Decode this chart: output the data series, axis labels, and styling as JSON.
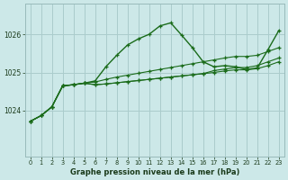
{
  "xlabel": "Graphe pression niveau de la mer (hPa)",
  "bg_color": "#cce8e8",
  "grid_color": "#aacccc",
  "line_color": "#1a6b1a",
  "series_main": [
    1023.72,
    1023.87,
    1024.1,
    1024.65,
    1024.68,
    1024.72,
    1024.78,
    1025.15,
    1025.45,
    1025.72,
    1025.88,
    1026.0,
    1026.22,
    1026.3,
    1025.98,
    1025.65,
    1025.28,
    1025.15,
    1025.18,
    1025.15,
    1025.08,
    1025.12,
    1025.6,
    1026.1
  ],
  "series_line1": [
    1023.72,
    1023.87,
    1024.1,
    1024.65,
    1024.68,
    1024.72,
    1024.75,
    1024.82,
    1024.88,
    1024.93,
    1024.98,
    1025.03,
    1025.08,
    1025.13,
    1025.18,
    1025.23,
    1025.28,
    1025.33,
    1025.38,
    1025.42,
    1025.42,
    1025.45,
    1025.55,
    1025.65
  ],
  "series_line2": [
    1023.72,
    1023.87,
    1024.1,
    1024.65,
    1024.68,
    1024.72,
    1024.68,
    1024.7,
    1024.73,
    1024.76,
    1024.79,
    1024.82,
    1024.85,
    1024.88,
    1024.91,
    1024.94,
    1024.97,
    1025.05,
    1025.09,
    1025.13,
    1025.13,
    1025.18,
    1025.28,
    1025.38
  ],
  "series_line3": [
    1023.72,
    1023.87,
    1024.1,
    1024.65,
    1024.68,
    1024.72,
    1024.68,
    1024.7,
    1024.73,
    1024.76,
    1024.79,
    1024.82,
    1024.85,
    1024.88,
    1024.91,
    1024.94,
    1024.97,
    1025.0,
    1025.04,
    1025.07,
    1025.07,
    1025.1,
    1025.18,
    1025.28
  ],
  "xlim": [
    -0.5,
    23.5
  ],
  "ylim": [
    1022.8,
    1026.8
  ],
  "yticks": [
    1024,
    1025,
    1026
  ],
  "xticks": [
    0,
    1,
    2,
    3,
    4,
    5,
    6,
    7,
    8,
    9,
    10,
    11,
    12,
    13,
    14,
    15,
    16,
    17,
    18,
    19,
    20,
    21,
    22,
    23
  ]
}
